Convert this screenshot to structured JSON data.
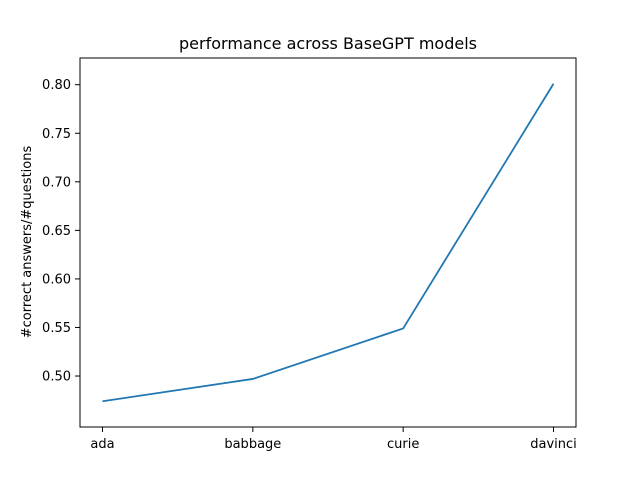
{
  "chart_data": {
    "type": "line",
    "title": "performance across BaseGPT models",
    "xlabel": "",
    "ylabel": "#correct answers/#questions",
    "categories": [
      "ada",
      "babbage",
      "curie",
      "davinci"
    ],
    "series": [
      {
        "values": [
          0.474,
          0.497,
          0.549,
          0.801
        ],
        "color": "#1f77b4"
      }
    ],
    "ylim": [
      0.4475,
      0.8275
    ],
    "yticks": [
      "0.50",
      "0.55",
      "0.60",
      "0.65",
      "0.70",
      "0.75",
      "0.80"
    ],
    "grid": false,
    "legend": "none"
  }
}
